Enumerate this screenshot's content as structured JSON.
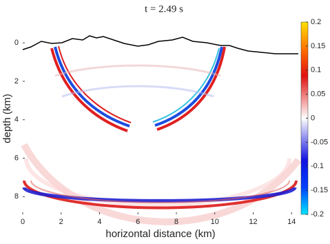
{
  "chart_data": {
    "type": "heatmap",
    "title": "t = 2.49 s",
    "xlabel": "horizontal distance (km)",
    "ylabel": "depth (km)",
    "xlim": [
      0,
      14.35
    ],
    "xticks": [
      0,
      2,
      4,
      6,
      8,
      10,
      12,
      14
    ],
    "ylim": [
      -1.08,
      8.92
    ],
    "yticks": [
      0,
      2,
      4,
      6,
      8
    ],
    "y_inverted": true,
    "clim": [
      -0.2,
      0.2
    ],
    "cticks": [
      -0.2,
      -0.15,
      -0.1,
      -0.05,
      0,
      0.05,
      0.1,
      0.15,
      0.2
    ]
  }
}
